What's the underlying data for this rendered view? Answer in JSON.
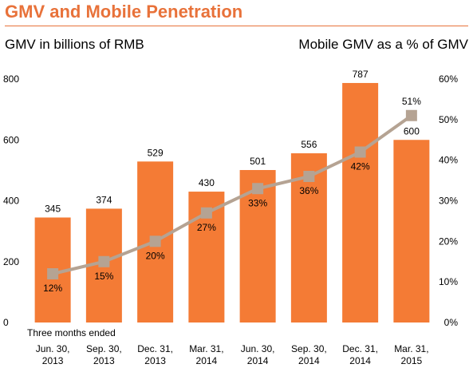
{
  "chart_data": {
    "type": "bar",
    "title": "GMV and Mobile Penetration",
    "ylabel": "GMV in billions of RMB",
    "y2label": "Mobile GMV as a % of GMV",
    "xlabel": "Three months ended",
    "categories": [
      [
        "Jun. 30,",
        "2013"
      ],
      [
        "Sep. 30,",
        "2013"
      ],
      [
        "Dec. 31,",
        "2013"
      ],
      [
        "Mar. 31,",
        "2014"
      ],
      [
        "Jun. 30,",
        "2014"
      ],
      [
        "Sep. 30,",
        "2014"
      ],
      [
        "Dec. 31,",
        "2014"
      ],
      [
        "Mar. 31,",
        "2015"
      ]
    ],
    "series": [
      {
        "name": "GMV in billions of RMB",
        "type": "bar",
        "axis": "left",
        "values": [
          345,
          374,
          529,
          430,
          501,
          556,
          787,
          600
        ],
        "labels": [
          "345",
          "374",
          "529",
          "430",
          "501",
          "556",
          "787",
          "600"
        ]
      },
      {
        "name": "Mobile GMV as a % of GMV",
        "type": "line",
        "axis": "right",
        "values": [
          12,
          15,
          20,
          27,
          33,
          36,
          42,
          51
        ],
        "labels": [
          "12%",
          "15%",
          "20%",
          "27%",
          "33%",
          "36%",
          "42%",
          "51%"
        ]
      }
    ],
    "ylim": [
      0,
      800
    ],
    "yticks": [
      "0",
      "200",
      "400",
      "600",
      "800"
    ],
    "y2lim": [
      0,
      60
    ],
    "y2ticks": [
      "0%",
      "10%",
      "20%",
      "30%",
      "40%",
      "50%",
      "60%"
    ],
    "grid": false,
    "colors": {
      "bar": "#f47b35",
      "line": "#b5a393",
      "marker": "#b5a393",
      "title": "#e8723a"
    }
  }
}
